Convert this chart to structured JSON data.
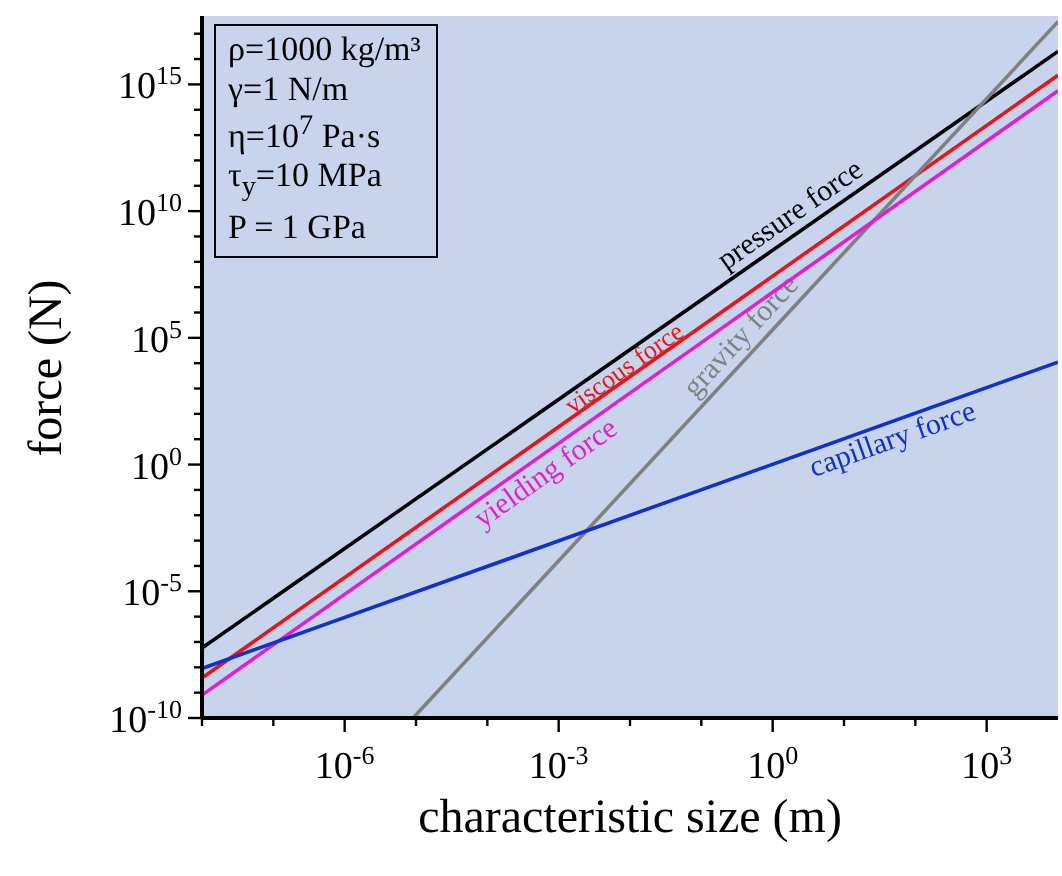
{
  "chart_data": {
    "type": "line",
    "xlabel": "characteristic size (m)",
    "ylabel": "force (N)",
    "log": "xy",
    "xlim": [
      1e-08,
      10000.0
    ],
    "ylim": [
      1e-10,
      5e+17
    ],
    "xticks": [
      {
        "value": 1e-08,
        "label": null
      },
      {
        "value": 1e-07,
        "label": null
      },
      {
        "value": 1e-06,
        "label": "10$^{-6}$"
      },
      {
        "value": 1e-05,
        "label": null
      },
      {
        "value": 0.0001,
        "label": null
      },
      {
        "value": 0.001,
        "label": "10$^{-3}$"
      },
      {
        "value": 0.01,
        "label": null
      },
      {
        "value": 0.1,
        "label": null
      },
      {
        "value": 1,
        "label": "10$^{0}$"
      },
      {
        "value": 10,
        "label": null
      },
      {
        "value": 100,
        "label": null
      },
      {
        "value": 1000,
        "label": "10$^{3}$"
      }
    ],
    "yticks": [
      {
        "value": 1e-10,
        "label": "10$^{-10}$"
      },
      {
        "value": 1e-09,
        "label": null
      },
      {
        "value": 1e-08,
        "label": null
      },
      {
        "value": 1e-07,
        "label": null
      },
      {
        "value": 1e-06,
        "label": null
      },
      {
        "value": 1e-05,
        "label": "10$^{-5}$"
      },
      {
        "value": 0.0001,
        "label": null
      },
      {
        "value": 0.001,
        "label": null
      },
      {
        "value": 0.01,
        "label": null
      },
      {
        "value": 0.1,
        "label": null
      },
      {
        "value": 1,
        "label": "10$^{0}$"
      },
      {
        "value": 10,
        "label": null
      },
      {
        "value": 100,
        "label": null
      },
      {
        "value": 1000,
        "label": null
      },
      {
        "value": 10000,
        "label": null
      },
      {
        "value": 100000,
        "label": "10$^{5}$"
      },
      {
        "value": 1000000.0,
        "label": null
      },
      {
        "value": 10000000.0,
        "label": null
      },
      {
        "value": 100000000.0,
        "label": null
      },
      {
        "value": 1000000000.0,
        "label": null
      },
      {
        "value": 10000000000.0,
        "label": "10$^{10}$"
      },
      {
        "value": 100000000000.0,
        "label": null
      },
      {
        "value": 1000000000000.0,
        "label": null
      },
      {
        "value": 10000000000000.0,
        "label": null
      },
      {
        "value": 100000000000000.0,
        "label": null
      },
      {
        "value": 1000000000000000.0,
        "label": "10$^{15}$"
      },
      {
        "value": 1e+16,
        "label": null
      },
      {
        "value": 1e+17,
        "label": null
      }
    ],
    "legend": false,
    "marker": "none",
    "line_style": "solid",
    "series": [
      {
        "name": "pressure force",
        "color": "#000000",
        "x": [
          1e-08,
          10000.0
        ],
        "values": [
          5.8e-08,
          2e+16
        ]
      },
      {
        "name": "viscous force",
        "color": "#e8141a",
        "x": [
          1e-08,
          10000.0
        ],
        "values": [
          3.8e-09,
          2300000000000000.0
        ]
      },
      {
        "name": "gravity force",
        "color": "#808080",
        "x": [
          9.1e-06,
          10000.0
        ],
        "values": [
          1e-10,
          3e+17
        ]
      },
      {
        "name": "yielding force",
        "color": "#e020d0",
        "x": [
          1e-08,
          10000.0
        ],
        "values": [
          8e-10,
          560000000000000.0
        ]
      },
      {
        "name": "capillary force",
        "color": "#1030d0",
        "x": [
          1e-08,
          10000.0
        ],
        "values": [
          9e-09,
          11000.0
        ]
      }
    ],
    "annotations": [
      "ρ=1000 kg/m³",
      "γ=1 N/m",
      "η=10$^{7}$ Pa·s",
      "τ$_{y}$=10 MPa",
      "P = 1 GPa"
    ]
  }
}
